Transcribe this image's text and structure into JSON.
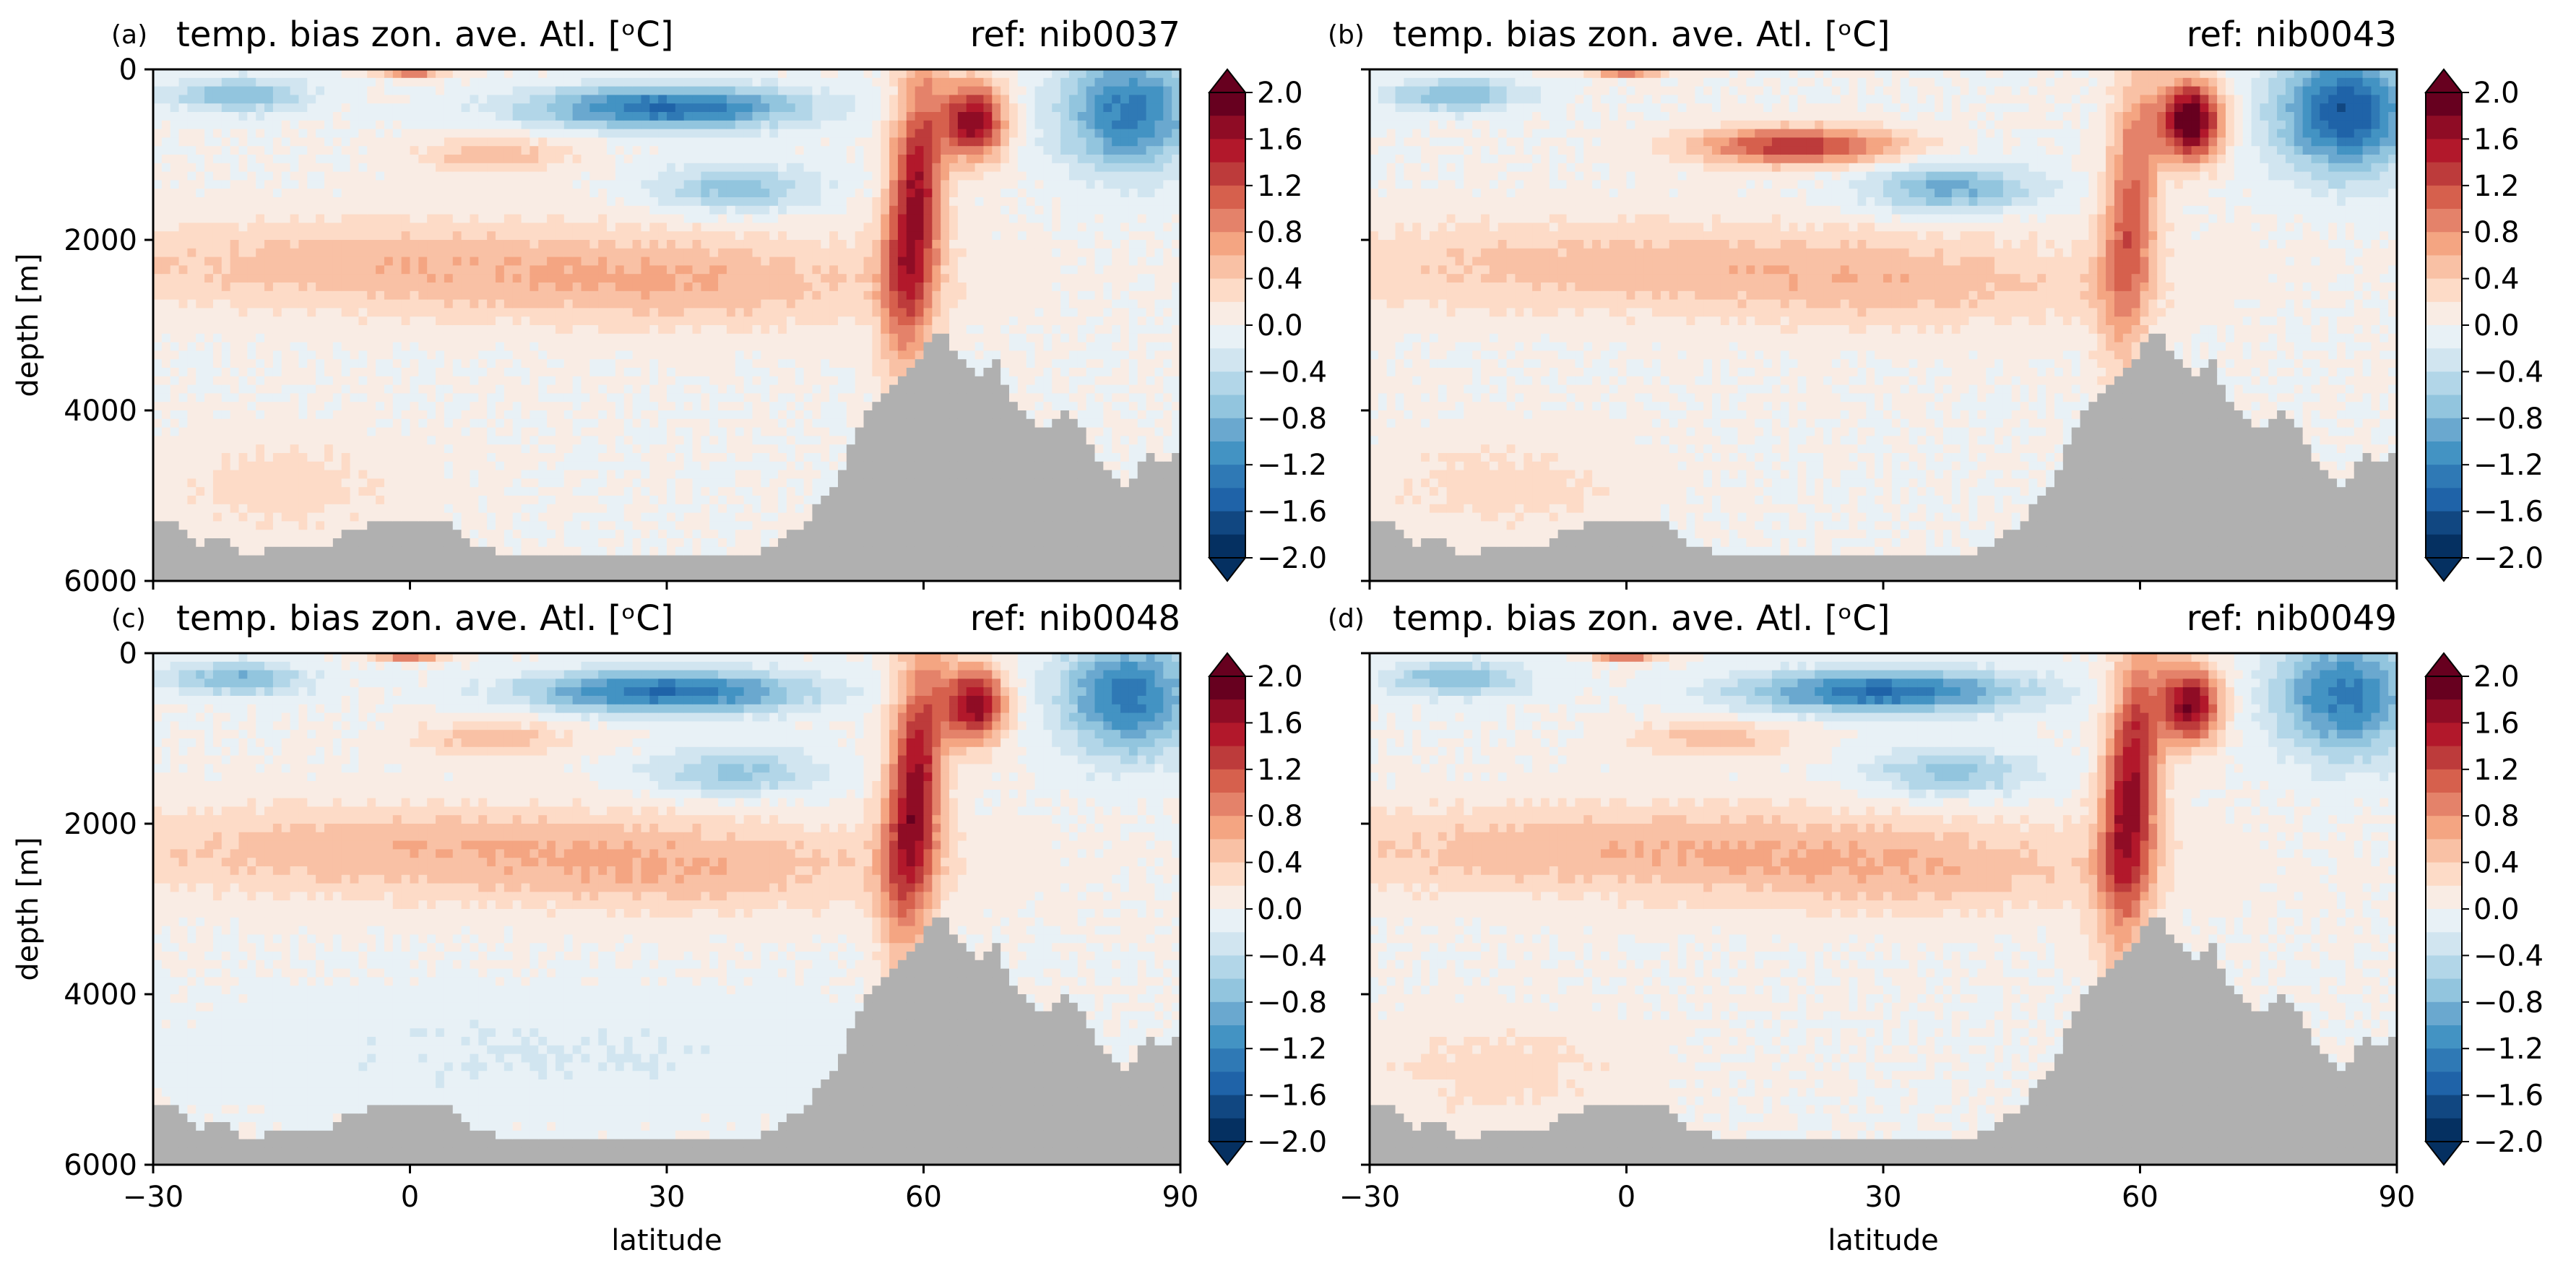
{
  "figure": {
    "panels": [
      {
        "letter": "(a)",
        "title": "temp. bias zon. ave. Atl. [ᵒC]",
        "ref": "ref: nib0037"
      },
      {
        "letter": "(b)",
        "title": "temp. bias zon. ave. Atl. [ᵒC]",
        "ref": "ref: nib0043"
      },
      {
        "letter": "(c)",
        "title": "temp. bias zon. ave. Atl. [ᵒC]",
        "ref": "ref: nib0048"
      },
      {
        "letter": "(d)",
        "title": "temp. bias zon. ave. Atl. [ᵒC]",
        "ref": "ref: nib0049"
      }
    ],
    "ylabel": "depth [m]",
    "xlabel": "latitude",
    "xticks": [
      "−30",
      "0",
      "30",
      "60",
      "90"
    ],
    "yticks": [
      "0",
      "2000",
      "4000",
      "6000"
    ],
    "colorbar_ticks": [
      "2.0",
      "1.6",
      "1.2",
      "0.8",
      "0.4",
      "0.0",
      "−0.4",
      "−0.8",
      "−1.2",
      "−1.6",
      "−2.0"
    ]
  },
  "chart_data": [
    {
      "type": "heatmap",
      "panel": "(a)",
      "title": "temp. bias zon. ave. Atl. [ᵒC]",
      "subtitle": "ref: nib0037",
      "xlabel": "latitude",
      "ylabel": "depth [m]",
      "xlim": [
        -30,
        90
      ],
      "ylim": [
        6000,
        0
      ],
      "colorbar": {
        "min": -2.0,
        "max": 2.0,
        "step": 0.2,
        "colormap": "RdBu_r",
        "extend": "both"
      },
      "features": [
        {
          "name": "surface_cold_band",
          "lat": [
            5,
            50
          ],
          "depth": [
            0,
            700
          ],
          "value": -1.4
        },
        {
          "name": "nordic_warm",
          "lat": [
            60,
            72
          ],
          "depth": [
            0,
            1300
          ],
          "value": 1.9
        },
        {
          "name": "arctic_cold",
          "lat": [
            70,
            90
          ],
          "depth": [
            0,
            1200
          ],
          "value": -1.4
        },
        {
          "name": "nadw_warm_core",
          "lat": [
            50,
            63
          ],
          "depth": [
            0,
            3800
          ],
          "value": 1.7
        },
        {
          "name": "mid_depth_warm",
          "lat": [
            -30,
            60
          ],
          "depth": [
            1500,
            3000
          ],
          "value": 0.6
        },
        {
          "name": "mid_cold_lens",
          "lat": [
            28,
            48
          ],
          "depth": [
            1000,
            1800
          ],
          "value": -0.6
        },
        {
          "name": "deep_warm",
          "lat": [
            -30,
            10
          ],
          "depth": [
            4000,
            5600
          ],
          "value": 0.4
        }
      ]
    },
    {
      "type": "heatmap",
      "panel": "(b)",
      "title": "temp. bias zon. ave. Atl. [ᵒC]",
      "subtitle": "ref: nib0043",
      "xlabel": "latitude",
      "ylabel": "depth [m]",
      "xlim": [
        -30,
        90
      ],
      "ylim": [
        6000,
        0
      ],
      "colorbar": {
        "min": -2.0,
        "max": 2.0,
        "step": 0.2,
        "colormap": "RdBu_r",
        "extend": "both"
      },
      "features": [
        {
          "name": "subsurface_warm",
          "lat": [
            5,
            35
          ],
          "depth": [
            500,
            1300
          ],
          "value": 1.3
        },
        {
          "name": "nordic_warm",
          "lat": [
            60,
            72
          ],
          "depth": [
            0,
            1200
          ],
          "value": 2.0
        },
        {
          "name": "arctic_cold",
          "lat": [
            70,
            90
          ],
          "depth": [
            0,
            1500
          ],
          "value": -1.6
        },
        {
          "name": "nadw_warm_core",
          "lat": [
            52,
            64
          ],
          "depth": [
            0,
            3800
          ],
          "value": 1.1
        },
        {
          "name": "mid_cold_lens",
          "lat": [
            25,
            50
          ],
          "depth": [
            1100,
            2000
          ],
          "value": -0.9
        },
        {
          "name": "mid_depth_warm",
          "lat": [
            -30,
            60
          ],
          "depth": [
            2000,
            3000
          ],
          "value": 0.3
        },
        {
          "name": "deep_warm",
          "lat": [
            -30,
            10
          ],
          "depth": [
            4000,
            5600
          ],
          "value": 0.3
        }
      ]
    },
    {
      "type": "heatmap",
      "panel": "(c)",
      "title": "temp. bias zon. ave. Atl. [ᵒC]",
      "subtitle": "ref: nib0048",
      "xlabel": "latitude",
      "ylabel": "depth [m]",
      "xlim": [
        -30,
        90
      ],
      "ylim": [
        6000,
        0
      ],
      "colorbar": {
        "min": -2.0,
        "max": 2.0,
        "step": 0.2,
        "colormap": "RdBu_r",
        "extend": "both"
      },
      "features": [
        {
          "name": "surface_cold_band",
          "lat": [
            10,
            50
          ],
          "depth": [
            0,
            600
          ],
          "value": -1.2
        },
        {
          "name": "nordic_warm",
          "lat": [
            60,
            72
          ],
          "depth": [
            0,
            1300
          ],
          "value": 1.9
        },
        {
          "name": "arctic_cold",
          "lat": [
            70,
            90
          ],
          "depth": [
            0,
            1200
          ],
          "value": -1.3
        },
        {
          "name": "nadw_warm_core",
          "lat": [
            50,
            63
          ],
          "depth": [
            0,
            3800
          ],
          "value": 1.7
        },
        {
          "name": "mid_depth_warm",
          "lat": [
            -30,
            60
          ],
          "depth": [
            1500,
            3000
          ],
          "value": 0.6
        },
        {
          "name": "mid_cold_lens",
          "lat": [
            28,
            48
          ],
          "depth": [
            1000,
            1800
          ],
          "value": -0.8
        },
        {
          "name": "deep_cool",
          "lat": [
            -30,
            60
          ],
          "depth": [
            4000,
            5600
          ],
          "value": -0.2
        }
      ]
    },
    {
      "type": "heatmap",
      "panel": "(d)",
      "title": "temp. bias zon. ave. Atl. [ᵒC]",
      "subtitle": "ref: nib0049",
      "xlabel": "latitude",
      "ylabel": "depth [m]",
      "xlim": [
        -30,
        90
      ],
      "ylim": [
        6000,
        0
      ],
      "colorbar": {
        "min": -2.0,
        "max": 2.0,
        "step": 0.2,
        "colormap": "RdBu_r",
        "extend": "both"
      },
      "features": [
        {
          "name": "surface_cold_band",
          "lat": [
            10,
            50
          ],
          "depth": [
            0,
            650
          ],
          "value": -1.4
        },
        {
          "name": "nordic_warm",
          "lat": [
            60,
            70
          ],
          "depth": [
            0,
            1100
          ],
          "value": 1.6
        },
        {
          "name": "arctic_cold",
          "lat": [
            70,
            90
          ],
          "depth": [
            0,
            1200
          ],
          "value": -1.3
        },
        {
          "name": "nadw_warm_core",
          "lat": [
            52,
            64
          ],
          "depth": [
            0,
            3800
          ],
          "value": 1.6
        },
        {
          "name": "mid_depth_warm",
          "lat": [
            -30,
            60
          ],
          "depth": [
            1500,
            3000
          ],
          "value": 0.6
        },
        {
          "name": "mid_cold_lens",
          "lat": [
            28,
            48
          ],
          "depth": [
            1000,
            1800
          ],
          "value": -0.8
        },
        {
          "name": "deep_warm",
          "lat": [
            -30,
            10
          ],
          "depth": [
            4000,
            5600
          ],
          "value": 0.3
        }
      ]
    }
  ]
}
